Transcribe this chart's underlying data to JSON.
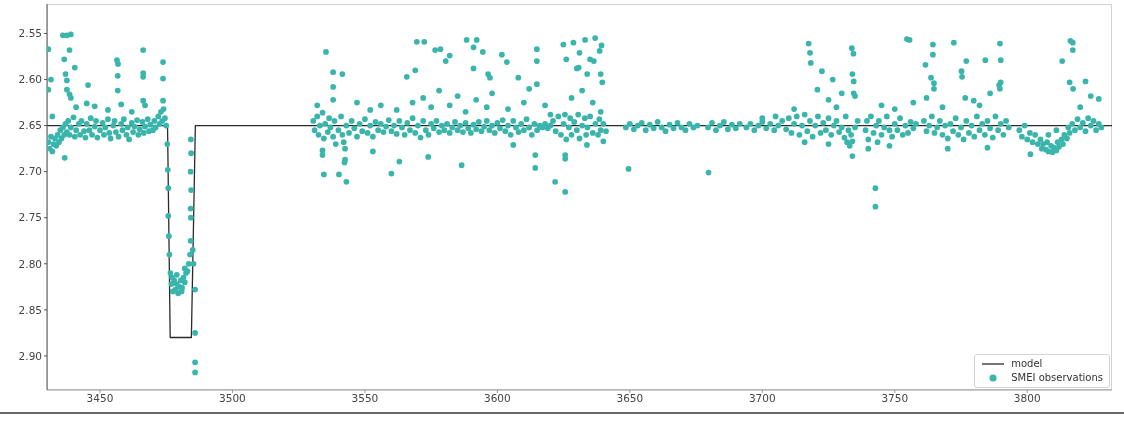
{
  "chart_data": {
    "type": "scatter",
    "xlim": [
      3430,
      3832
    ],
    "ylim": [
      2.937,
      2.518
    ],
    "xticks": [
      3450,
      3500,
      3550,
      3600,
      3650,
      3700,
      3750,
      3800
    ],
    "yticks": [
      2.55,
      {
        "value": 2.6,
        "label": "2.60"
      },
      2.65,
      {
        "value": 2.7,
        "label": "2.70"
      },
      2.75,
      {
        "value": 2.8,
        "label": "2.80"
      },
      2.85,
      {
        "value": 2.9,
        "label": "2.90"
      }
    ],
    "legend": "bottom right",
    "series": [
      {
        "name": "model",
        "type": "line",
        "color": "#2b2b2b",
        "marker": "none",
        "line_style": "solid",
        "x": [
          3430,
          3475.5,
          3476.5,
          3484.5,
          3486,
          3832
        ],
        "values": [
          2.65,
          2.65,
          2.88,
          2.88,
          2.65,
          2.65
        ]
      },
      {
        "name": "SMEI observations",
        "type": "scatter",
        "color": "#3ab5ac",
        "marker": "circle",
        "x": [
          3430.5,
          3431,
          3431.5,
          3432,
          3432.5,
          3433,
          3433.5,
          3434,
          3434.5,
          3435,
          3435.5,
          3436,
          3436.5,
          3437,
          3437.5,
          3438,
          3438.5,
          3439,
          3440,
          3440.5,
          3441,
          3442,
          3442.5,
          3443,
          3444,
          3444.5,
          3445,
          3446,
          3446.5,
          3447,
          3448,
          3448.5,
          3449,
          3450,
          3451,
          3451.5,
          3452,
          3453,
          3453.5,
          3454,
          3455,
          3455.5,
          3456,
          3457,
          3458,
          3458.5,
          3459,
          3460,
          3460.5,
          3461,
          3462,
          3462.5,
          3463,
          3464,
          3464.5,
          3465,
          3466,
          3466.5,
          3467,
          3468,
          3468.5,
          3469,
          3470,
          3470.5,
          3471,
          3472,
          3472.5,
          3473,
          3473.5,
          3474,
          3474.5,
          3475,
          3430.5,
          3436,
          3437.5,
          3439,
          3436.5,
          3437,
          3438.5,
          3440.5,
          3431.5,
          3437.5,
          3430.5,
          3437.5,
          3438.5,
          3439,
          3445.5,
          3456.4,
          3456.8,
          3456.7,
          3456.7,
          3466.3,
          3466.3,
          3466.3,
          3466.3,
          3473.8,
          3473.8,
          3473.8,
          3436.7,
          3445,
          3448,
          3453,
          3458,
          3467,
          3441,
          3462,
          3432,
          3475.4,
          3475.6,
          3475.8,
          3475.8,
          3476,
          3476.2,
          3476.6,
          3477,
          3477.5,
          3478,
          3478.5,
          3479,
          3479.5,
          3480,
          3480.5,
          3481,
          3481.5,
          3482,
          3482.5,
          3483,
          3483.5,
          3477.2,
          3479,
          3480.8,
          3482,
          3484,
          3484.2,
          3484.3,
          3484.2,
          3484.4,
          3484.2,
          3484.4,
          3484.3,
          3485,
          3485.3,
          3485.9,
          3485.9,
          3485.9,
          3485.9,
          3530.5,
          3531,
          3532,
          3532.5,
          3533,
          3534,
          3534.5,
          3535,
          3536,
          3536.5,
          3537,
          3538,
          3538.5,
          3539,
          3540,
          3541,
          3541.5,
          3542,
          3542.5,
          3543,
          3544,
          3545,
          3546,
          3547,
          3548,
          3549,
          3550,
          3551,
          3552,
          3553,
          3554,
          3555,
          3556,
          3557,
          3558,
          3559,
          3560,
          3561,
          3562,
          3563,
          3564,
          3565,
          3566,
          3567,
          3568,
          3569,
          3570,
          3571,
          3572,
          3573,
          3574,
          3575,
          3576,
          3577,
          3578,
          3579,
          3580,
          3581,
          3582,
          3583,
          3584,
          3585,
          3586,
          3587,
          3588,
          3589,
          3590,
          3591,
          3592,
          3593,
          3594,
          3595,
          3596,
          3597,
          3598,
          3599,
          3600,
          3601,
          3602,
          3603,
          3604,
          3605,
          3606,
          3607,
          3608,
          3609,
          3610,
          3611,
          3612,
          3613,
          3614,
          3615,
          3616,
          3617,
          3618,
          3619,
          3620,
          3621,
          3622,
          3623,
          3624,
          3625,
          3625.5,
          3626,
          3627,
          3627.5,
          3628,
          3629,
          3630,
          3630.5,
          3631,
          3632,
          3633,
          3633.5,
          3634,
          3635,
          3636,
          3637,
          3638,
          3638.5,
          3639,
          3640,
          3641,
          3562,
          3568,
          3572,
          3575,
          3578,
          3582,
          3585,
          3588,
          3592,
          3596,
          3598,
          3604,
          3610,
          3612,
          3618,
          3620,
          3628,
          3632,
          3636,
          3639,
          3547,
          3552,
          3556,
          3538,
          3532,
          3535.3,
          3538,
          3541.5,
          3538,
          3534.5,
          3540.2,
          3543,
          3542.5,
          3542.3,
          3534,
          3534,
          3553,
          3560,
          3563,
          3569.6,
          3572.4,
          3565.8,
          3569,
          3573.9,
          3576.5,
          3578.5,
          3580.5,
          3582,
          3588.4,
          3592.2,
          3586.5,
          3591,
          3596.5,
          3597.2,
          3591,
          3594.5,
          3601.7,
          3603.6,
          3606,
          3607.9,
          3614.9,
          3614.9,
          3614.9,
          3614.3,
          3614.3,
          3621.8,
          3625.6,
          3625.6,
          3625.6,
          3624.9,
          3628.7,
          3633.1,
          3636.9,
          3626,
          3631,
          3635,
          3638.6,
          3639.3,
          3630,
          3630.7,
          3633.9,
          3636.4,
          3639,
          3639.6,
          3633.8,
          3640,
          3649.5,
          3648.5,
          3650,
          3651.5,
          3653,
          3654.5,
          3656,
          3657.5,
          3659,
          3660.5,
          3662,
          3663.5,
          3665,
          3666.5,
          3668,
          3669.5,
          3671,
          3672.5,
          3674,
          3675.5,
          3679.5,
          3681,
          3682.5,
          3684,
          3685.5,
          3687,
          3688.5,
          3690,
          3691.5,
          3694,
          3695.5,
          3697,
          3698.5,
          3700,
          3701.5,
          3703,
          3704.5,
          3706,
          3707.5,
          3709,
          3710,
          3711,
          3712,
          3713,
          3714,
          3715,
          3716,
          3717,
          3718,
          3719,
          3720,
          3721,
          3722,
          3723,
          3724,
          3725,
          3726,
          3727,
          3728,
          3729,
          3730,
          3731,
          3731.5,
          3732,
          3732.5,
          3733,
          3733.5,
          3734,
          3735,
          3736,
          3739,
          3739.5,
          3740,
          3741,
          3742,
          3743,
          3743.5,
          3744,
          3745,
          3746,
          3747,
          3748,
          3749,
          3750,
          3751,
          3752,
          3753,
          3754,
          3755,
          3756,
          3757,
          3758,
          3761,
          3762,
          3763,
          3764,
          3765,
          3766,
          3767,
          3768,
          3769,
          3770,
          3771,
          3772,
          3773,
          3774,
          3775,
          3776,
          3777,
          3778,
          3779,
          3780,
          3781,
          3782,
          3783,
          3784,
          3785,
          3786,
          3787,
          3788,
          3789,
          3790,
          3791,
          3792,
          3793,
          3797,
          3798,
          3799,
          3800,
          3801,
          3802,
          3803,
          3804,
          3805,
          3805.5,
          3806,
          3807,
          3807.5,
          3808,
          3809,
          3809.5,
          3810,
          3811,
          3811.5,
          3812,
          3813,
          3813.5,
          3814,
          3815,
          3815.5,
          3816,
          3817,
          3818,
          3819,
          3820,
          3821,
          3822,
          3823,
          3824,
          3825,
          3826,
          3827,
          3828,
          3679.7,
          3717.5,
          3718,
          3718.3,
          3722.5,
          3726.6,
          3720.8,
          3733.8,
          3734.4,
          3734,
          3734.5,
          3734.5,
          3735,
          3742.7,
          3742.7,
          3734,
          3754.6,
          3755.6,
          3761.6,
          3764.4,
          3764.4,
          3772.3,
          3775.2,
          3775.4,
          3777,
          3784.2,
          3789.7,
          3790,
          3790,
          3789.4,
          3789.7,
          3779.8,
          3801.2,
          3813.2,
          3816.3,
          3817.2,
          3817.2,
          3816,
          3817.3,
          3822,
          3827,
          3763.7,
          3764.8,
          3764.8,
          3762,
          3776.6,
          3745,
          3750,
          3757,
          3768,
          3782,
          3786,
          3712,
          3705,
          3700,
          3728,
          3725,
          3730,
          3820,
          3824,
          3808,
          3811,
          3740,
          3748,
          3770,
          3785,
          3725,
          3716
        ],
        "values": [
          2.668,
          2.675,
          2.662,
          2.678,
          2.67,
          2.664,
          2.672,
          2.66,
          2.668,
          2.655,
          2.664,
          2.652,
          2.66,
          2.648,
          2.657,
          2.645,
          2.66,
          2.652,
          2.641,
          2.662,
          2.655,
          2.648,
          2.66,
          2.645,
          2.656,
          2.663,
          2.648,
          2.655,
          2.642,
          2.66,
          2.651,
          2.645,
          2.663,
          2.655,
          2.647,
          2.66,
          2.652,
          2.643,
          2.658,
          2.664,
          2.65,
          2.645,
          2.657,
          2.662,
          2.648,
          2.655,
          2.643,
          2.66,
          2.652,
          2.665,
          2.647,
          2.657,
          2.651,
          2.644,
          2.66,
          2.654,
          2.646,
          2.658,
          2.651,
          2.643,
          2.656,
          2.649,
          2.655,
          2.645,
          2.652,
          2.64,
          2.648,
          2.635,
          2.645,
          2.632,
          2.642,
          2.65,
          2.567,
          2.552,
          2.552,
          2.551,
          2.578,
          2.594,
          2.568,
          2.587,
          2.6,
          2.601,
          2.611,
          2.611,
          2.616,
          2.62,
          2.606,
          2.579,
          2.583,
          2.596,
          2.612,
          2.568,
          2.593,
          2.597,
          2.623,
          2.581,
          2.599,
          2.623,
          2.685,
          2.626,
          2.629,
          2.633,
          2.627,
          2.628,
          2.63,
          2.635,
          2.64,
          2.67,
          2.698,
          2.718,
          2.748,
          2.77,
          2.79,
          2.81,
          2.822,
          2.83,
          2.818,
          2.828,
          2.822,
          2.832,
          2.825,
          2.818,
          2.826,
          2.815,
          2.82,
          2.81,
          2.808,
          2.8,
          2.815,
          2.812,
          2.83,
          2.805,
          2.79,
          2.775,
          2.75,
          2.74,
          2.72,
          2.7,
          2.68,
          2.665,
          2.785,
          2.8,
          2.828,
          2.875,
          2.907,
          2.918,
          2.645,
          2.655,
          2.64,
          2.66,
          2.65,
          2.636,
          2.664,
          2.648,
          2.657,
          2.642,
          2.652,
          2.662,
          2.645,
          2.67,
          2.655,
          2.64,
          2.66,
          2.668,
          2.675,
          2.65,
          2.658,
          2.645,
          2.653,
          2.662,
          2.648,
          2.656,
          2.643,
          2.658,
          2.65,
          2.662,
          2.646,
          2.655,
          2.648,
          2.657,
          2.651,
          2.644,
          2.656,
          2.65,
          2.659,
          2.645,
          2.652,
          2.66,
          2.647,
          2.655,
          2.642,
          2.658,
          2.65,
          2.663,
          2.645,
          2.655,
          2.66,
          2.648,
          2.653,
          2.645,
          2.657,
          2.65,
          2.655,
          2.648,
          2.658,
          2.652,
          2.646,
          2.655,
          2.65,
          2.657,
          2.647,
          2.653,
          2.658,
          2.649,
          2.654,
          2.646,
          2.656,
          2.651,
          2.645,
          2.655,
          2.65,
          2.658,
          2.647,
          2.653,
          2.644,
          2.656,
          2.65,
          2.66,
          2.645,
          2.652,
          2.657,
          2.648,
          2.655,
          2.643,
          2.652,
          2.66,
          2.648,
          2.655,
          2.65,
          2.652,
          2.648,
          2.653,
          2.65,
          2.645,
          2.656,
          2.64,
          2.66,
          2.648,
          2.638,
          2.665,
          2.652,
          2.642,
          2.66,
          2.646,
          2.655,
          2.638,
          2.664,
          2.65,
          2.642,
          2.66,
          2.652,
          2.64,
          2.658,
          2.648,
          2.66,
          2.643,
          2.655,
          2.648,
          2.656,
          2.633,
          2.625,
          2.62,
          2.63,
          2.612,
          2.628,
          2.618,
          2.635,
          2.622,
          2.63,
          2.615,
          2.632,
          2.625,
          2.61,
          2.628,
          2.638,
          2.62,
          2.612,
          2.625,
          2.635,
          2.625,
          2.633,
          2.628,
          2.622,
          2.628,
          2.57,
          2.592,
          2.594,
          2.608,
          2.703,
          2.703,
          2.711,
          2.687,
          2.69,
          2.677,
          2.682,
          2.678,
          2.702,
          2.689,
          2.559,
          2.559,
          2.597,
          2.59,
          2.684,
          2.568,
          2.567,
          2.58,
          2.574,
          2.557,
          2.557,
          2.693,
          2.588,
          2.594,
          2.598,
          2.565,
          2.57,
          2.573,
          2.581,
          2.671,
          2.598,
          2.567,
          2.58,
          2.605,
          2.682,
          2.696,
          2.711,
          2.722,
          2.682,
          2.686,
          2.562,
          2.56,
          2.557,
          2.555,
          2.578,
          2.571,
          2.578,
          2.569,
          2.563,
          2.588,
          2.587,
          2.594,
          2.58,
          2.594,
          2.603,
          2.671,
          2.667,
          2.697,
          2.652,
          2.648,
          2.654,
          2.65,
          2.647,
          2.655,
          2.649,
          2.653,
          2.646,
          2.652,
          2.656,
          2.649,
          2.653,
          2.647,
          2.652,
          2.655,
          2.648,
          2.652,
          2.65,
          2.652,
          2.647,
          2.655,
          2.65,
          2.646,
          2.654,
          2.649,
          2.653,
          2.648,
          2.652,
          2.648,
          2.655,
          2.65,
          2.646,
          2.653,
          2.648,
          2.655,
          2.65,
          2.645,
          2.654,
          2.642,
          2.658,
          2.648,
          2.64,
          2.66,
          2.65,
          2.638,
          2.656,
          2.645,
          2.662,
          2.65,
          2.64,
          2.658,
          2.647,
          2.655,
          2.642,
          2.66,
          2.65,
          2.645,
          2.657,
          2.652,
          2.663,
          2.64,
          2.668,
          2.655,
          2.672,
          2.66,
          2.667,
          2.652,
          2.645,
          2.655,
          2.645,
          2.665,
          2.64,
          2.658,
          2.65,
          2.668,
          2.645,
          2.66,
          2.652,
          2.64,
          2.655,
          2.662,
          2.648,
          2.655,
          2.642,
          2.66,
          2.65,
          2.658,
          2.646,
          2.653,
          2.648,
          2.645,
          2.656,
          2.65,
          2.64,
          2.658,
          2.652,
          2.645,
          2.66,
          2.65,
          2.664,
          2.648,
          2.656,
          2.642,
          2.66,
          2.652,
          2.665,
          2.645,
          2.658,
          2.65,
          2.662,
          2.64,
          2.655,
          2.648,
          2.66,
          2.645,
          2.653,
          2.663,
          2.64,
          2.655,
          2.648,
          2.66,
          2.645,
          2.652,
          2.655,
          2.662,
          2.65,
          2.665,
          2.658,
          2.668,
          2.66,
          2.67,
          2.665,
          2.675,
          2.67,
          2.676,
          2.668,
          2.678,
          2.672,
          2.679,
          2.674,
          2.677,
          2.668,
          2.673,
          2.665,
          2.67,
          2.66,
          2.664,
          2.652,
          2.658,
          2.648,
          2.655,
          2.643,
          2.652,
          2.647,
          2.656,
          2.642,
          2.65,
          2.645,
          2.655,
          2.648,
          2.652,
          2.701,
          2.561,
          2.571,
          2.582,
          2.591,
          2.6,
          2.611,
          2.566,
          2.572,
          2.594,
          2.602,
          2.615,
          2.618,
          2.718,
          2.738,
          2.683,
          2.556,
          2.557,
          2.584,
          2.562,
          2.573,
          2.56,
          2.591,
          2.597,
          2.58,
          2.579,
          2.561,
          2.579,
          2.603,
          2.606,
          2.61,
          2.623,
          2.681,
          2.58,
          2.558,
          2.56,
          2.568,
          2.603,
          2.61,
          2.602,
          2.621,
          2.598,
          2.604,
          2.61,
          2.62,
          2.62,
          2.628,
          2.632,
          2.625,
          2.63,
          2.628,
          2.615,
          2.632,
          2.64,
          2.642,
          2.63,
          2.622,
          2.615,
          2.63,
          2.618,
          2.66,
          2.655,
          2.675,
          2.672,
          2.675,
          2.674,
          2.67,
          2.668
        ]
      }
    ]
  }
}
